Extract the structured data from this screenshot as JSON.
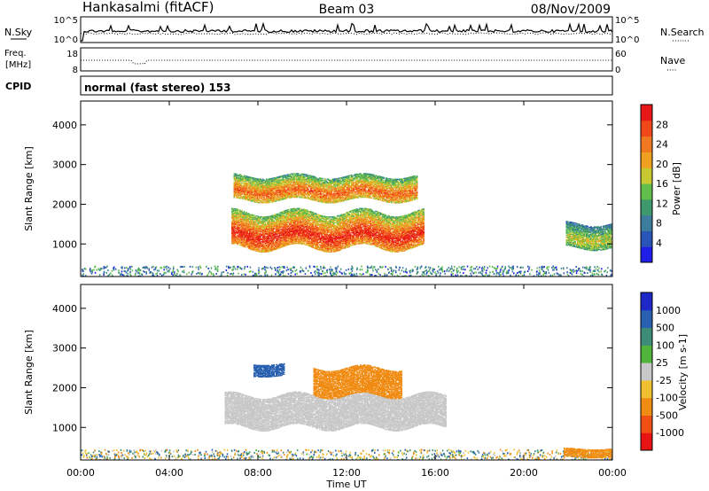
{
  "header": {
    "station": "Hankasalmi (fitACF)",
    "beam": "Beam 03",
    "date": "08/Nov/2009"
  },
  "panels": {
    "nsky": {
      "label": "N.Sky",
      "left_ticks": [
        "10^5",
        "10^0"
      ],
      "right_label": "N.Search",
      "right_ticks": [
        "10^5",
        "10^0"
      ],
      "right_legend_glyph": "·······"
    },
    "freq": {
      "label_line1": "Freq.",
      "label_line2": "[MHz]",
      "left_ticks": [
        "18",
        "8"
      ],
      "right_label": "Nave",
      "right_ticks": [
        "60",
        "0"
      ],
      "right_legend_glyph": "····"
    },
    "cpid": {
      "label": "CPID",
      "text": "normal (fast stereo) 153"
    }
  },
  "chart_data": [
    {
      "type": "heatmap",
      "title": "",
      "ylabel": "Slant Range [km]",
      "xlabel": "",
      "yticks": [
        "4000",
        "3000",
        "2000",
        "1000"
      ],
      "ylim": [
        180,
        4600
      ],
      "xlim_hours": [
        0,
        24
      ],
      "colorbar": {
        "label": "Power [dB]",
        "ticks": [
          "28",
          "24",
          "20",
          "16",
          "12",
          "8",
          "4"
        ],
        "range": [
          0,
          32
        ],
        "colors": [
          "#1e1ee8",
          "#2a55b8",
          "#3c7c9c",
          "#3e9a6e",
          "#62be4a",
          "#c8c832",
          "#f0a020",
          "#f07820",
          "#f04818",
          "#e81818"
        ]
      },
      "features": [
        {
          "name": "main-backscatter-band",
          "t_start": 6.8,
          "t_end": 15.5,
          "range_km": [
            900,
            1800
          ],
          "peak_power_db": 30
        },
        {
          "name": "upper-band",
          "t_start": 6.9,
          "t_end": 15.2,
          "range_km": [
            2100,
            2700
          ],
          "peak_power_db": 26
        },
        {
          "name": "late-patch",
          "t_start": 21.9,
          "t_end": 24,
          "range_km": [
            900,
            1500
          ],
          "peak_power_db": 18
        }
      ]
    },
    {
      "type": "heatmap",
      "title": "",
      "ylabel": "Slant Range [km]",
      "xlabel": "Time UT",
      "xticks": [
        "00:00",
        "04:00",
        "08:00",
        "12:00",
        "16:00",
        "20:00",
        "00:00"
      ],
      "yticks": [
        "4000",
        "3000",
        "2000",
        "1000"
      ],
      "ylim": [
        180,
        4600
      ],
      "xlim_hours": [
        0,
        24
      ],
      "colorbar": {
        "label": "Velocity [m s-1]",
        "ticks": [
          "1000",
          "500",
          "100",
          "25",
          "-25",
          "-100",
          "-500",
          "-1000"
        ],
        "colors": [
          "#1e28c8",
          "#2a60b0",
          "#3c8c78",
          "#50b43c",
          "#c8c8c8",
          "#f0c030",
          "#f08c14",
          "#f05014",
          "#e81414"
        ]
      },
      "features": [
        {
          "name": "ground-scatter-band",
          "t_start": 6.5,
          "t_end": 16.5,
          "range_km": [
            1000,
            1800
          ],
          "velocity_ms": 0
        },
        {
          "name": "receding-echoes",
          "t_start": 10.5,
          "t_end": 14.5,
          "range_km": [
            1800,
            2500
          ],
          "velocity_ms": -300
        },
        {
          "name": "approaching-echoes",
          "t_start": 7.8,
          "t_end": 9.2,
          "range_km": [
            2300,
            2600
          ],
          "velocity_ms": 200
        },
        {
          "name": "negative-velocity-patch",
          "t_start": 21.8,
          "t_end": 24,
          "range_km": [
            250,
            450
          ],
          "velocity_ms": -150
        }
      ]
    }
  ]
}
